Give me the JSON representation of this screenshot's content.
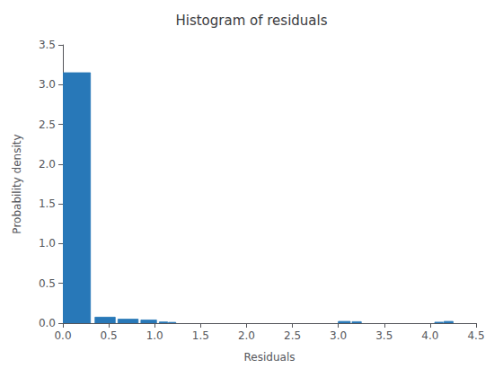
{
  "chart_data": {
    "type": "bar",
    "title": "Histogram of residuals",
    "xlabel": "Residuals",
    "ylabel": "Probability density",
    "color": "#2878B8",
    "x": [
      0.0,
      0.35,
      0.6,
      0.85,
      1.05,
      1.15,
      3.0,
      3.15,
      4.05,
      4.15
    ],
    "widths": [
      0.3,
      0.22,
      0.22,
      0.17,
      0.09,
      0.08,
      0.13,
      0.1,
      0.09,
      0.1
    ],
    "values": [
      3.15,
      0.075,
      0.05,
      0.04,
      0.015,
      0.01,
      0.022,
      0.018,
      0.012,
      0.022
    ],
    "xlim": [
      0,
      4.5
    ],
    "xticks": [
      {
        "value": 0,
        "label": "0.0"
      },
      0.5,
      {
        "value": 1,
        "label": "1.0"
      },
      1.5,
      {
        "value": 2,
        "label": "2.0"
      },
      2.5,
      {
        "value": 3,
        "label": "3.0"
      },
      3.5,
      {
        "value": 4,
        "label": "4.0"
      },
      4.5
    ],
    "ylim": [
      0,
      3.5
    ],
    "yticks": [
      {
        "value": 0,
        "label": "0.0"
      },
      0.5,
      {
        "value": 1,
        "label": "1.0"
      },
      1.5,
      {
        "value": 2,
        "label": "2.0"
      },
      2.5,
      {
        "value": 3,
        "label": "3.0"
      },
      3.5
    ],
    "grid": false
  }
}
